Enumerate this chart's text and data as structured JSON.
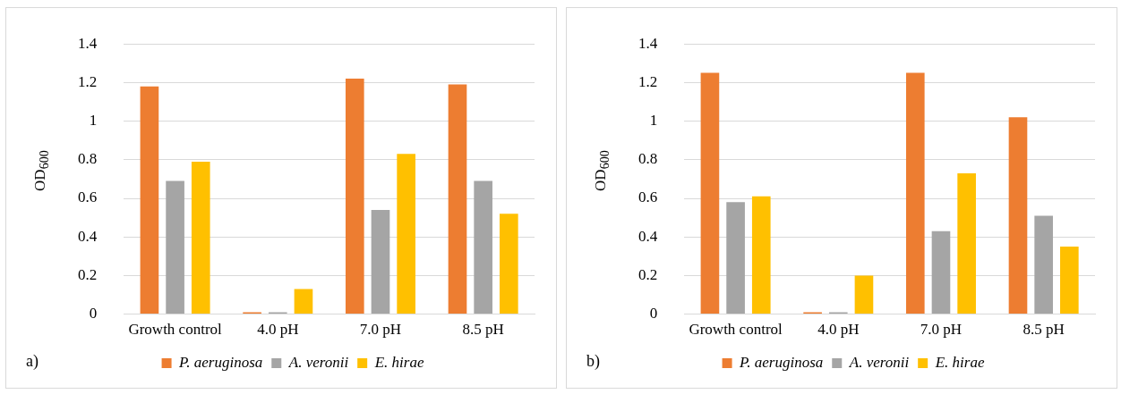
{
  "chart_data": [
    {
      "type": "bar",
      "categories": [
        "Growth control",
        "4.0 pH",
        "7.0 pH",
        "8.5 pH"
      ],
      "ylabel": "OD$_{600}$",
      "ylim": [
        0,
        1.4
      ],
      "yticks": [
        0,
        0.2,
        0.4,
        0.6,
        0.8,
        1,
        1.2,
        1.4
      ],
      "grid": "y",
      "legend": "bottom",
      "annotations": [
        "a)"
      ],
      "series": [
        {
          "name": "P. aeruginosa",
          "color": "#ed7d31",
          "values": [
            1.18,
            0.01,
            1.22,
            1.19
          ]
        },
        {
          "name": "A. veronii",
          "color": "#a5a5a5",
          "values": [
            0.69,
            0.01,
            0.54,
            0.69
          ]
        },
        {
          "name": "E. hirae",
          "color": "#ffc000",
          "values": [
            0.79,
            0.13,
            0.83,
            0.52
          ]
        }
      ]
    },
    {
      "type": "bar",
      "categories": [
        "Growth control",
        "4.0 pH",
        "7.0 pH",
        "8.5 pH"
      ],
      "ylabel": "OD$_{600}$",
      "ylim": [
        0,
        1.4
      ],
      "yticks": [
        0,
        0.2,
        0.4,
        0.6,
        0.8,
        1,
        1.2,
        1.4
      ],
      "grid": "y",
      "legend": "bottom",
      "annotations": [
        "b)"
      ],
      "series": [
        {
          "name": "P. aeruginosa",
          "color": "#ed7d31",
          "values": [
            1.25,
            0.01,
            1.25,
            1.02
          ]
        },
        {
          "name": "A. veronii",
          "color": "#a5a5a5",
          "values": [
            0.58,
            0.01,
            0.43,
            0.51
          ]
        },
        {
          "name": "E. hirae",
          "color": "#ffc000",
          "values": [
            0.61,
            0.2,
            0.73,
            0.35
          ]
        }
      ]
    }
  ]
}
